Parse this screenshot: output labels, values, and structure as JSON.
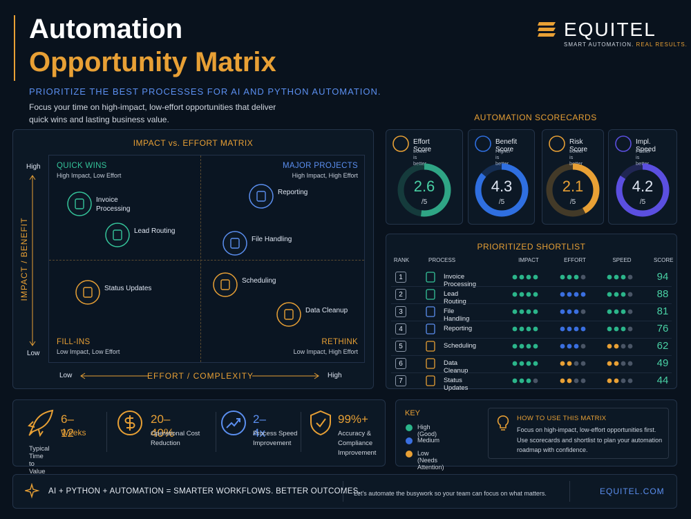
{
  "header": {
    "title_line1": "Automation",
    "title_line2": "Opportunity Matrix",
    "subtitle": "PRIORITIZE THE BEST PROCESSES FOR AI AND PYTHON AUTOMATION.",
    "description": "Focus your time on high-impact, low-effort opportunities that deliver quick wins and lasting business value."
  },
  "brand": {
    "name": "EQUITEL",
    "tagline_part1": "SMART AUTOMATION.",
    "tagline_part2": "REAL RESULTS."
  },
  "matrix": {
    "title": "IMPACT vs. EFFORT MATRIX",
    "y_axis": "IMPACT / BENEFIT",
    "y_high": "High",
    "y_low": "Low",
    "x_axis": "EFFORT / COMPLEXITY",
    "x_low": "Low",
    "x_high": "High",
    "quadrants": [
      {
        "title": "QUICK WINS",
        "subtitle": "High Impact, Low Effort",
        "color": "#35c49a"
      },
      {
        "title": "MAJOR PROJECTS",
        "subtitle": "High Impact, High Effort",
        "color": "#5b8ff0"
      },
      {
        "title": "FILL-INS",
        "subtitle": "Low Impact, Low Effort",
        "color": "#e8a035"
      },
      {
        "title": "RETHINK",
        "subtitle": "Low Impact, High Effort",
        "color": "#e8a035"
      }
    ],
    "items": [
      {
        "label": "Invoice Processing",
        "color": "#35c49a"
      },
      {
        "label": "Lead Routing",
        "color": "#35c49a"
      },
      {
        "label": "Reporting",
        "color": "#5b8ff0"
      },
      {
        "label": "File Handling",
        "color": "#5b8ff0"
      },
      {
        "label": "Status Updates",
        "color": "#e8a035"
      },
      {
        "label": "Scheduling",
        "color": "#e8a035"
      },
      {
        "label": "Data Cleanup",
        "color": "#e8a035"
      }
    ]
  },
  "scorecards": {
    "title": "AUTOMATION SCORECARDS",
    "cards": [
      {
        "name": "Effort Score",
        "note": "Lower is better",
        "value": 2.6,
        "scale_max": {
          "value": 5,
          "label": "/5"
        },
        "color": "#2fa585",
        "text_color": "#49d0a4"
      },
      {
        "name": "Benefit Score",
        "note": "Higher is better",
        "value": 4.3,
        "scale_max": {
          "value": 5,
          "label": "/5"
        },
        "color": "#2f6fe0",
        "text_color": "#dfe6f2"
      },
      {
        "name": "Risk Score",
        "note": "Lower is better",
        "value": 2.1,
        "scale_max": {
          "value": 5,
          "label": "/5"
        },
        "color": "#e8a035",
        "text_color": "#e8a035"
      },
      {
        "name": "Impl. Speed",
        "note": "Faster is better",
        "value": 4.2,
        "scale_max": {
          "value": 5,
          "label": "/5"
        },
        "color": "#5b4fe0",
        "text_color": "#dfe6f2"
      }
    ]
  },
  "shortlist": {
    "title": "PRIORITIZED SHORTLIST",
    "columns": [
      "RANK",
      "PROCESS",
      "IMPACT",
      "EFFORT",
      "SPEED",
      "SCORE"
    ],
    "rating_max": 4,
    "rows": [
      {
        "rank": 1,
        "process": "Invoice Processing",
        "impact": {
          "value": 4,
          "color": "#2bb58a"
        },
        "effort": {
          "value": 3,
          "color": "#2bb58a"
        },
        "speed": {
          "value": 3,
          "color": "#2bb58a"
        },
        "score": 94
      },
      {
        "rank": 2,
        "process": "Lead Routing",
        "impact": {
          "value": 4,
          "color": "#2bb58a"
        },
        "effort": {
          "value": 4,
          "color": "#3a6fe0"
        },
        "speed": {
          "value": 3,
          "color": "#2bb58a"
        },
        "score": 88
      },
      {
        "rank": 3,
        "process": "File Handling",
        "impact": {
          "value": 4,
          "color": "#2bb58a"
        },
        "effort": {
          "value": 3,
          "color": "#3a6fe0"
        },
        "speed": {
          "value": 3,
          "color": "#2bb58a"
        },
        "score": 81
      },
      {
        "rank": 4,
        "process": "Reporting",
        "impact": {
          "value": 4,
          "color": "#2bb58a"
        },
        "effort": {
          "value": 4,
          "color": "#3a6fe0"
        },
        "speed": {
          "value": 3,
          "color": "#2bb58a"
        },
        "score": 76
      },
      {
        "rank": 5,
        "process": "Scheduling",
        "impact": {
          "value": 4,
          "color": "#2bb58a"
        },
        "effort": {
          "value": 3,
          "color": "#3a6fe0"
        },
        "speed": {
          "value": 2,
          "color": "#e8a035"
        },
        "score": 62
      },
      {
        "rank": 6,
        "process": "Data Cleanup",
        "impact": {
          "value": 4,
          "color": "#2bb58a"
        },
        "effort": {
          "value": 2,
          "color": "#e8a035"
        },
        "speed": {
          "value": 2,
          "color": "#e8a035"
        },
        "score": 49
      },
      {
        "rank": 7,
        "process": "Status Updates",
        "impact": {
          "value": 3,
          "color": "#2bb58a"
        },
        "effort": {
          "value": 2,
          "color": "#e8a035"
        },
        "speed": {
          "value": 2,
          "color": "#e8a035"
        },
        "score": 44
      }
    ]
  },
  "stats": [
    {
      "value": "6–12",
      "unit": "Weeks",
      "label": "Typical Time to Value"
    },
    {
      "value": "20–40%",
      "label": "Operational Cost Reduction"
    },
    {
      "value": "2–4x",
      "label": "Process Speed Improvement"
    },
    {
      "value": "99%+",
      "label": "Accuracy & Compliance Improvement"
    }
  ],
  "key": {
    "title": "KEY",
    "items": [
      {
        "label": "High (Good)",
        "color": "#2bb58a"
      },
      {
        "label": "Medium",
        "color": "#3a6fe0"
      },
      {
        "label": "Low (Needs Attention)",
        "color": "#e8a035"
      }
    ]
  },
  "how_to": {
    "title": "HOW TO USE THIS MATRIX",
    "text": "Focus on high-impact, low-effort opportunities first. Use scorecards and shortlist to plan your automation roadmap with confidence."
  },
  "footer": {
    "tagline": "AI + PYTHON + AUTOMATION = SMARTER WORKFLOWS. BETTER OUTCOMES.",
    "message": "Let's automate the busywork so your team can focus on what matters.",
    "url": "EQUITEL.COM"
  }
}
